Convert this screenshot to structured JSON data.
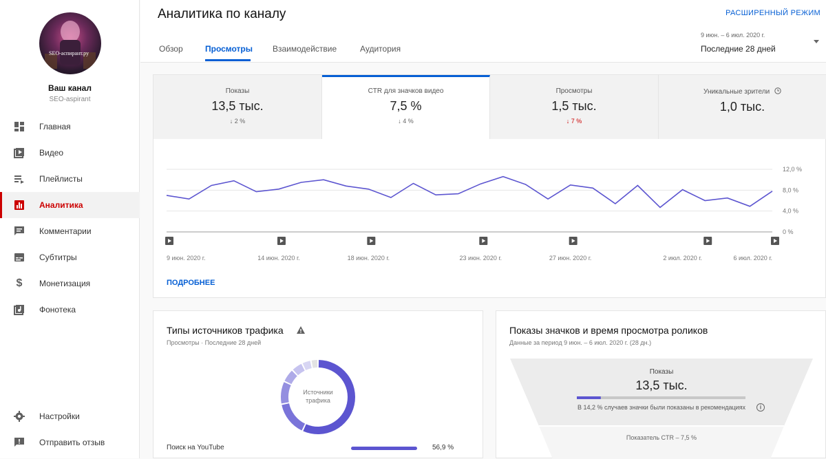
{
  "sidebar": {
    "avatar_watermark": "SEO-аспирант.ру",
    "channel_title": "Ваш канал",
    "channel_name": "SEO-aspirant",
    "items": [
      {
        "label": "Главная",
        "icon": "dashboard-icon"
      },
      {
        "label": "Видео",
        "icon": "video-icon"
      },
      {
        "label": "Плейлисты",
        "icon": "playlist-icon"
      },
      {
        "label": "Аналитика",
        "icon": "analytics-icon"
      },
      {
        "label": "Комментарии",
        "icon": "comments-icon"
      },
      {
        "label": "Субтитры",
        "icon": "subtitles-icon"
      },
      {
        "label": "Монетизация",
        "icon": "dollar-icon"
      },
      {
        "label": "Фонотека",
        "icon": "audio-library-icon"
      }
    ],
    "bottom": [
      {
        "label": "Настройки",
        "icon": "gear-icon"
      },
      {
        "label": "Отправить отзыв",
        "icon": "feedback-icon"
      }
    ]
  },
  "header": {
    "title": "Аналитика по каналу",
    "advanced_mode": "РАСШИРЕННЫЙ РЕЖИМ",
    "tabs": [
      "Обзор",
      "Просмотры",
      "Взаимодействие",
      "Аудитория"
    ],
    "active_tab": "Просмотры",
    "date_range": "9 июн. – 6 июл. 2020 г.",
    "date_label": "Последние 28 дней"
  },
  "metrics": [
    {
      "label": "Показы",
      "value": "13,5 тыс.",
      "change": "↓ 2 %",
      "negative": false
    },
    {
      "label": "CTR для значков видео",
      "value": "7,5 %",
      "change": "↓ 4 %",
      "negative": false
    },
    {
      "label": "Просмотры",
      "value": "1,5 тыс.",
      "change": "↓ 7 %",
      "negative": true
    },
    {
      "label": "Уникальные зрители",
      "value": "1,0 тыс.",
      "change": "",
      "negative": false
    }
  ],
  "chart_data": {
    "type": "line",
    "series": [
      {
        "values": [
          7.0,
          6.3,
          8.9,
          9.8,
          7.7,
          8.2,
          9.5,
          10.0,
          8.8,
          8.2,
          6.6,
          9.3,
          7.1,
          7.3,
          9.2,
          10.6,
          9.1,
          6.3,
          9.0,
          8.4,
          5.4,
          8.9,
          4.7,
          8.1,
          6.0,
          6.5,
          4.9,
          7.8
        ]
      }
    ],
    "x_tick_labels": [
      "9 июн. 2020 г.",
      "14 июн. 2020 г.",
      "18 июн. 2020 г.",
      "23 июн. 2020 г.",
      "27 июн. 2020 г.",
      "2 июл. 2020 г.",
      "6 июл. 2020 г."
    ],
    "y_tick_labels": [
      "12,0 %",
      "8,0 %",
      "4,0 %",
      "0 %"
    ],
    "ylim": [
      0,
      12
    ],
    "line_color": "#5c55d0",
    "video_markers": 7
  },
  "more_link": "ПОДРОБНЕЕ",
  "traffic": {
    "title": "Типы источников трафика",
    "subtitle": "Просмотры · Последние 28 дней",
    "donut_center": [
      "Источники",
      "трафика"
    ],
    "slices": [
      56.9,
      15.0,
      10.0,
      6.0,
      5.0,
      4.0,
      3.1
    ],
    "rows": [
      {
        "label": "Поиск на YouTube",
        "value": "56,9 %",
        "share": 0.569
      }
    ]
  },
  "funnel": {
    "title": "Показы значков и время просмотра роликов",
    "subtitle": "Данные за период 9 июн. – 6 июл. 2020 г. (28 дн.)",
    "impressions_label": "Показы",
    "impressions_value": "13,5 тыс.",
    "recommend_share": 0.142,
    "recommend_text": "В 14,2 % случаев значки были показаны в рекомендациях",
    "ctr_text": "Показатель CTR – 7,5 %"
  }
}
